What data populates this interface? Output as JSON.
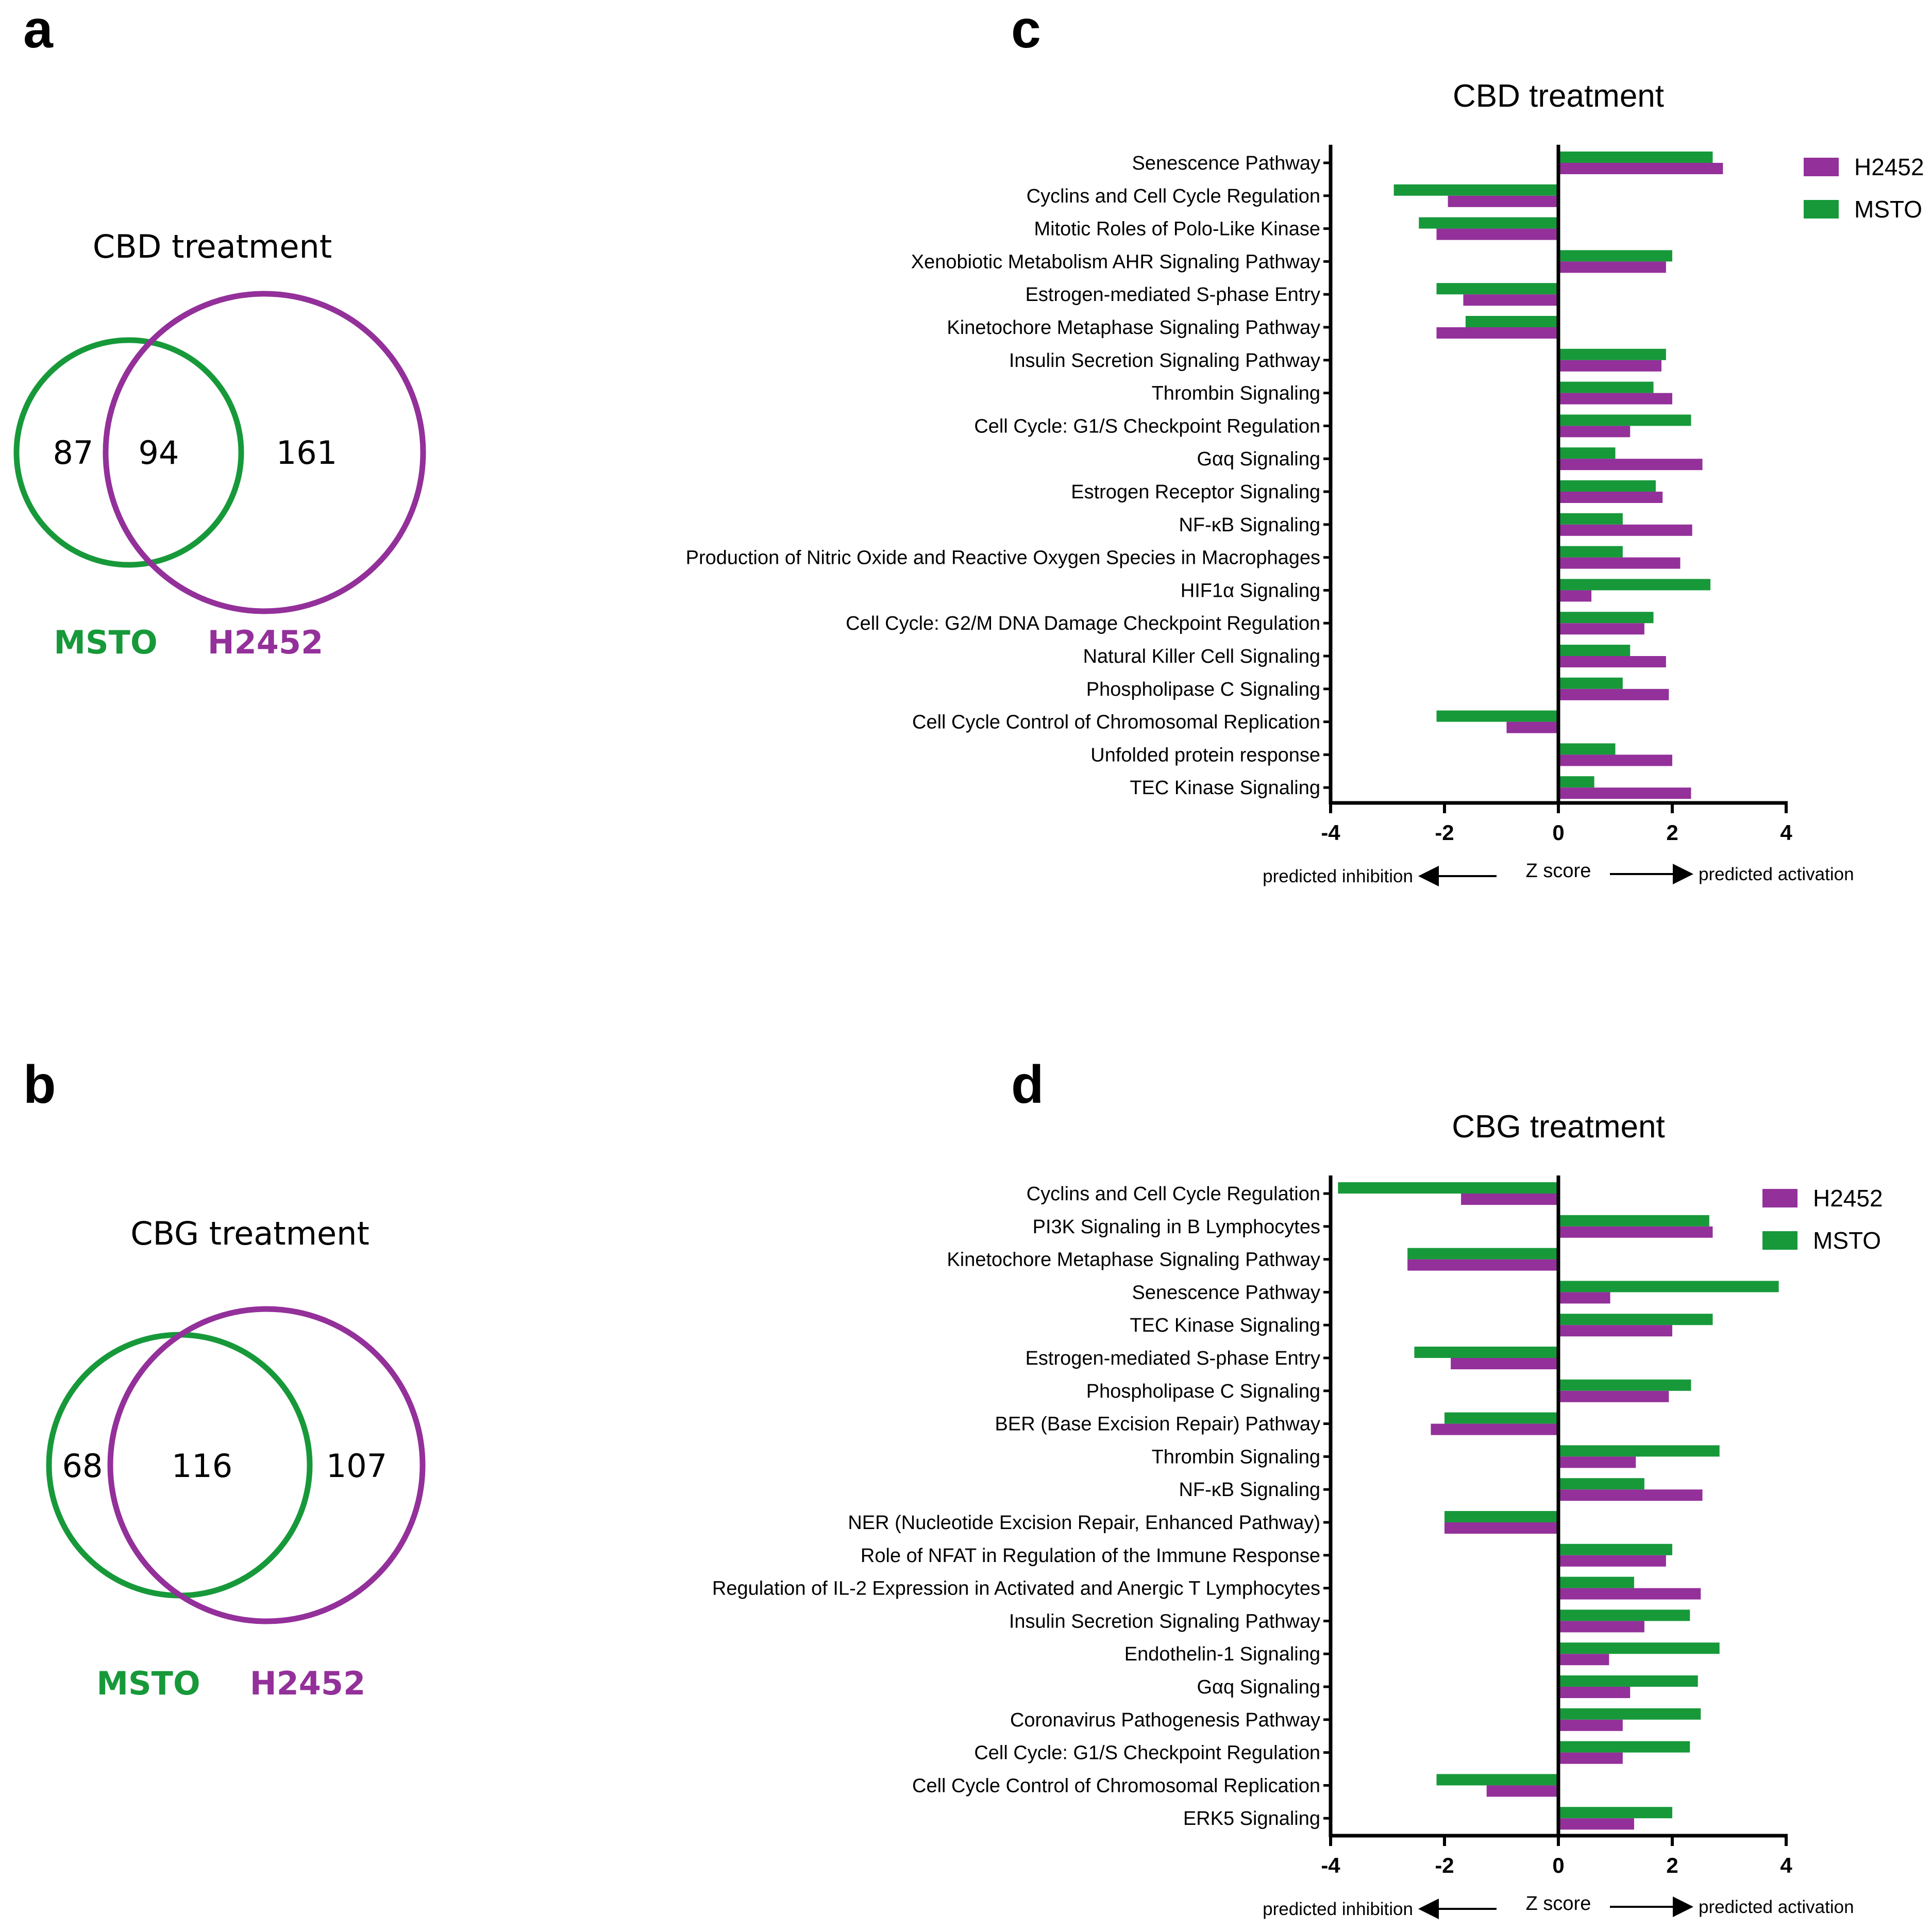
{
  "colors": {
    "msto": "#17993a",
    "h2452": "#93309a",
    "axis": "#000000"
  },
  "panels": {
    "a": "a",
    "b": "b",
    "c": "c",
    "d": "d"
  },
  "venn": [
    {
      "panel": "a",
      "title": "CBD treatment",
      "msto_only": "87",
      "overlap": "94",
      "h2452_only": "161",
      "msto_label": "MSTO",
      "h2452_label": "H2452"
    },
    {
      "panel": "b",
      "title": "CBG treatment",
      "msto_only": "68",
      "overlap": "116",
      "h2452_only": "107",
      "msto_label": "MSTO",
      "h2452_label": "H2452"
    }
  ],
  "chart_data": [
    {
      "panel": "c",
      "type": "bar",
      "orientation": "horizontal",
      "title": "CBD treatment",
      "xlabel": "Z score",
      "left_note": "predicted inhibition",
      "right_note": "predicted activation",
      "xlim": [
        -4,
        4
      ],
      "xticks": [
        "-4",
        "-2",
        "0",
        "2",
        "4"
      ],
      "legend_position": "top-right",
      "categories": [
        "Senescence Pathway",
        "Cyclins and Cell Cycle Regulation",
        "Mitotic Roles of Polo-Like Kinase",
        "Xenobiotic Metabolism AHR Signaling Pathway",
        "Estrogen-mediated S-phase Entry",
        "Kinetochore Metaphase Signaling Pathway",
        "Insulin Secretion Signaling Pathway",
        "Thrombin Signaling",
        "Cell Cycle: G1/S Checkpoint Regulation",
        "Gαq Signaling",
        "Estrogen Receptor Signaling",
        "NF-κB Signaling",
        "Production of Nitric Oxide and Reactive Oxygen Species in Macrophages",
        "HIF1α Signaling",
        "Cell Cycle: G2/M DNA Damage Checkpoint Regulation",
        "Natural Killer Cell Signaling",
        "Phospholipase C Signaling",
        "Cell Cycle Control of Chromosomal Replication",
        "Unfolded protein response",
        "TEC Kinase Signaling"
      ],
      "series": [
        {
          "name": "H2452",
          "color": "#93309a",
          "values": [
            2.89,
            -1.94,
            -2.14,
            1.89,
            -1.67,
            -2.14,
            1.81,
            2.0,
            1.26,
            2.53,
            1.83,
            2.35,
            2.14,
            0.58,
            1.51,
            1.89,
            1.94,
            -0.91,
            2.0,
            2.33
          ]
        },
        {
          "name": "MSTO",
          "color": "#17993a",
          "values": [
            2.71,
            -2.89,
            -2.45,
            2.0,
            -2.14,
            -1.63,
            1.89,
            1.67,
            2.33,
            1.0,
            1.71,
            1.13,
            1.13,
            2.67,
            1.67,
            1.26,
            1.13,
            -2.14,
            1.0,
            0.63
          ]
        }
      ]
    },
    {
      "panel": "d",
      "type": "bar",
      "orientation": "horizontal",
      "title": "CBG treatment",
      "xlabel": "Z score",
      "left_note": "predicted inhibition",
      "right_note": "predicted activation",
      "xlim": [
        -4,
        4
      ],
      "xticks": [
        "-4",
        "-2",
        "0",
        "2",
        "4"
      ],
      "legend_position": "top-right",
      "categories": [
        "Cyclins and Cell Cycle Regulation",
        "PI3K Signaling in B Lymphocytes",
        "Kinetochore Metaphase Signaling Pathway",
        "Senescence Pathway",
        "TEC Kinase Signaling",
        "Estrogen-mediated S-phase Entry",
        "Phospholipase C Signaling",
        "BER (Base Excision Repair) Pathway",
        "Thrombin Signaling",
        "NF-κB Signaling",
        "NER (Nucleotide Excision Repair, Enhanced Pathway)",
        "Role of NFAT in Regulation of the Immune Response",
        "Regulation of IL-2 Expression in Activated and Anergic T Lymphocytes",
        "Insulin Secretion Signaling Pathway",
        "Endothelin-1 Signaling",
        "Gαq Signaling",
        "Coronavirus Pathogenesis Pathway",
        "Cell Cycle: G1/S Checkpoint Regulation",
        "Cell Cycle Control of Chromosomal Replication",
        "ERK5 Signaling"
      ],
      "series": [
        {
          "name": "H2452",
          "color": "#93309a",
          "values": [
            -1.71,
            2.71,
            -2.65,
            0.91,
            2.0,
            -1.89,
            1.94,
            -2.24,
            1.36,
            2.53,
            -2.0,
            1.89,
            2.5,
            1.51,
            0.89,
            1.26,
            1.13,
            1.13,
            -1.26,
            1.33
          ]
        },
        {
          "name": "MSTO",
          "color": "#17993a",
          "values": [
            -3.87,
            2.65,
            -2.65,
            3.87,
            2.71,
            -2.53,
            2.33,
            -2.0,
            2.83,
            1.51,
            -2.0,
            2.0,
            1.33,
            2.31,
            2.83,
            2.45,
            2.5,
            2.31,
            -2.14,
            2.0
          ]
        }
      ]
    }
  ]
}
